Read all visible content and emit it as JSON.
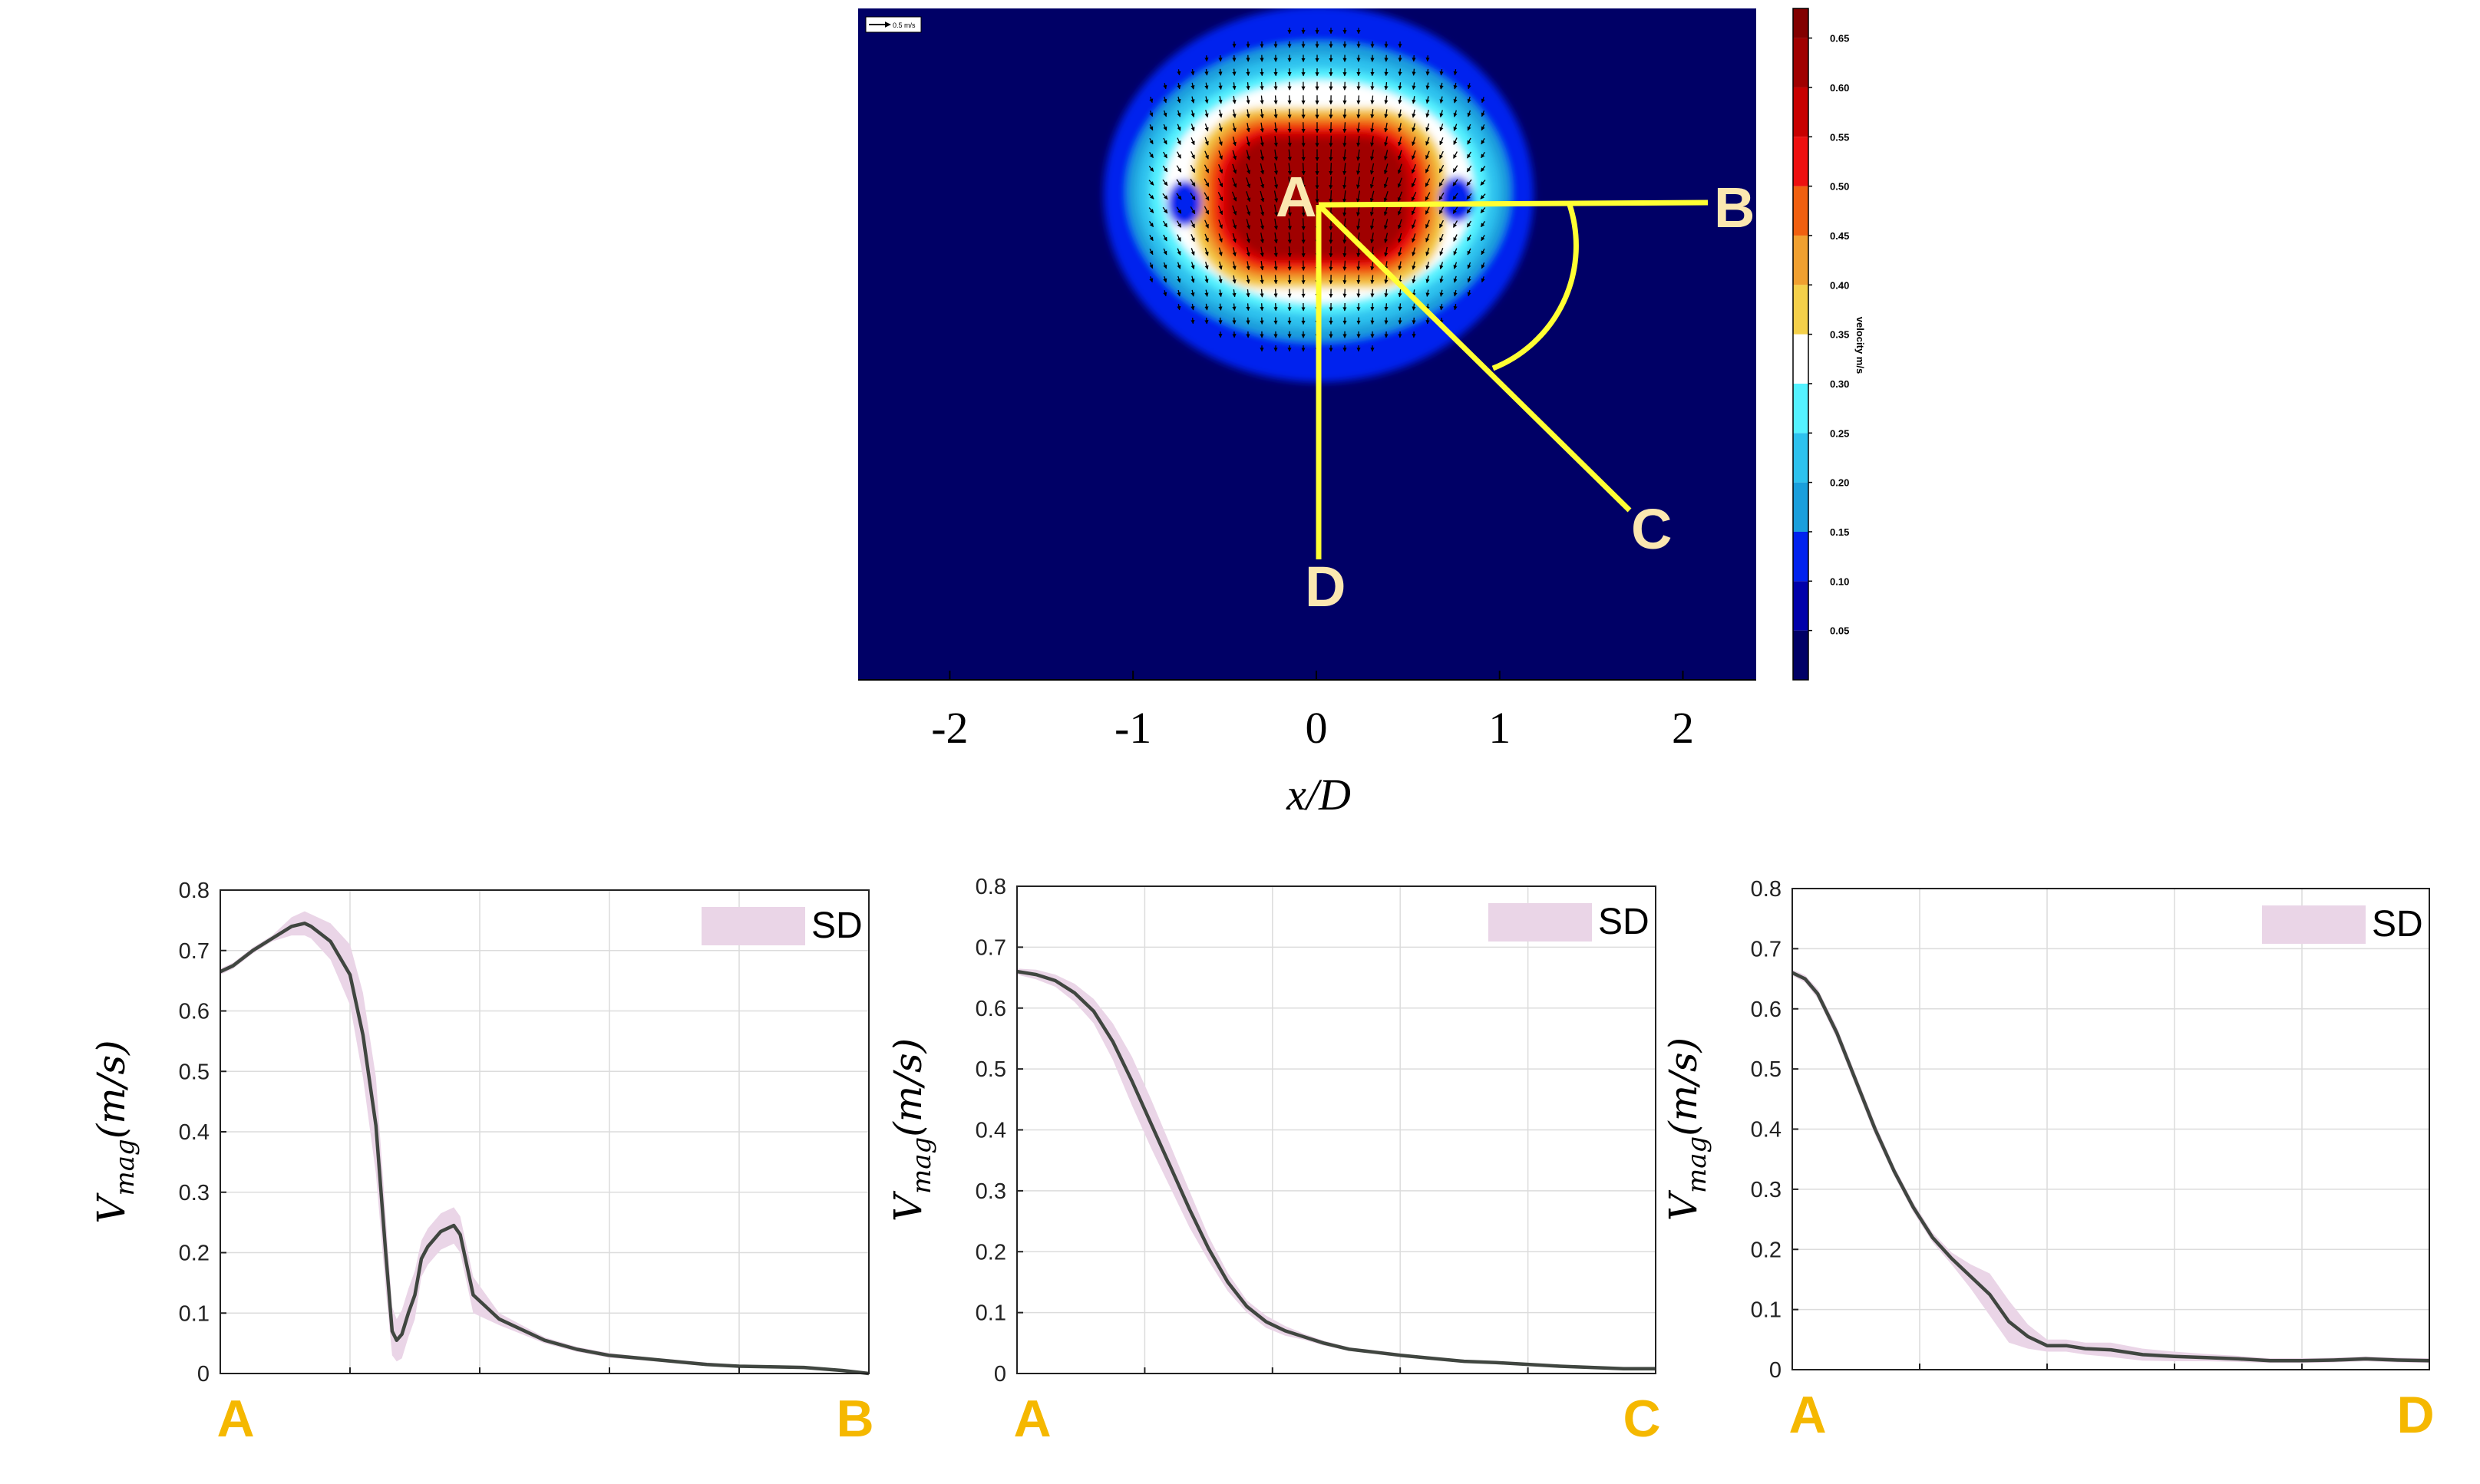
{
  "colors": {
    "line": "#404640",
    "sd_band": "#ead5e7",
    "grid": "#dcdcdc",
    "end_label": "#f5b800",
    "map_label": "#fbe7b0",
    "path_line": "#ffff33",
    "map_background": "#000066"
  },
  "contour_map": {
    "x_axis_label": "x/D",
    "x_ticks": [
      "-2",
      "-1",
      "0",
      "1",
      "2"
    ],
    "x_range": [
      -2.5,
      2.4
    ],
    "reference_arrow_label": "0.5 m/s",
    "points": [
      "A",
      "B",
      "C",
      "D"
    ],
    "colorbar": {
      "label": "velocity m/s",
      "levels": [
        0.05,
        0.1,
        0.15,
        0.2,
        0.25,
        0.3,
        0.35,
        0.4,
        0.45,
        0.5,
        0.55,
        0.6,
        0.65
      ],
      "tick_labels": [
        "0.05",
        "0.10",
        "0.15",
        "0.20",
        "0.25",
        "0.30",
        "0.35",
        "0.40",
        "0.45",
        "0.50",
        "0.55",
        "0.60",
        "0.65"
      ],
      "band_colors": [
        "#000066",
        "#0000aa",
        "#0022ee",
        "#1a9fdc",
        "#2ec2ee",
        "#55f2ff",
        "#ffffff",
        "#f4d04a",
        "#f0a030",
        "#f06010",
        "#ee1010",
        "#c80000",
        "#a00000",
        "#820000"
      ]
    }
  },
  "chart_data": [
    {
      "type": "line",
      "start_label": "A",
      "end_label": "B",
      "ylabel": "V_mag(m/s)",
      "ylabel_main": "V",
      "ylabel_sub": "mag",
      "ylabel_unit": "(m/s)",
      "ylim": [
        0,
        0.8
      ],
      "yticks": [
        "0",
        "0.1",
        "0.2",
        "0.3",
        "0.4",
        "0.5",
        "0.6",
        "0.7",
        "0.8"
      ],
      "xlim": [
        0,
        1
      ],
      "grid": true,
      "legend": {
        "label": "SD",
        "position": "top-right"
      },
      "x": [
        0,
        0.02,
        0.05,
        0.08,
        0.11,
        0.13,
        0.14,
        0.17,
        0.2,
        0.22,
        0.24,
        0.255,
        0.265,
        0.272,
        0.28,
        0.29,
        0.3,
        0.31,
        0.32,
        0.34,
        0.36,
        0.37,
        0.39,
        0.43,
        0.5,
        0.55,
        0.6,
        0.65,
        0.7,
        0.75,
        0.8,
        0.9,
        0.96,
        1
      ],
      "y": [
        0.665,
        0.675,
        0.7,
        0.72,
        0.74,
        0.745,
        0.74,
        0.715,
        0.66,
        0.56,
        0.41,
        0.2,
        0.07,
        0.055,
        0.065,
        0.1,
        0.13,
        0.19,
        0.21,
        0.235,
        0.245,
        0.23,
        0.13,
        0.09,
        0.055,
        0.04,
        0.03,
        0.025,
        0.02,
        0.015,
        0.012,
        0.01,
        0.005,
        0
      ],
      "sd": [
        0.005,
        0.005,
        0.005,
        0.005,
        0.015,
        0.02,
        0.02,
        0.03,
        0.05,
        0.07,
        0.08,
        0.06,
        0.04,
        0.035,
        0.04,
        0.04,
        0.04,
        0.03,
        0.03,
        0.03,
        0.03,
        0.03,
        0.03,
        0.01,
        0.005,
        0.004,
        0.004,
        0.003,
        0.003,
        0.003,
        0.002,
        0.002,
        0.002,
        0.002
      ]
    },
    {
      "type": "line",
      "start_label": "A",
      "end_label": "C",
      "ylabel": "V_mag(m/s)",
      "ylabel_main": "V",
      "ylabel_sub": "mag",
      "ylabel_unit": "(m/s)",
      "ylim": [
        0,
        0.8
      ],
      "yticks": [
        "0",
        "0.1",
        "0.2",
        "0.3",
        "0.4",
        "0.5",
        "0.6",
        "0.7",
        "0.8"
      ],
      "xlim": [
        0,
        1
      ],
      "grid": true,
      "legend": {
        "label": "SD",
        "position": "top-right"
      },
      "x": [
        0,
        0.03,
        0.06,
        0.09,
        0.12,
        0.15,
        0.18,
        0.21,
        0.24,
        0.27,
        0.3,
        0.33,
        0.36,
        0.39,
        0.42,
        0.45,
        0.48,
        0.52,
        0.56,
        0.6,
        0.65,
        0.7,
        0.75,
        0.8,
        0.85,
        0.9,
        0.95,
        1
      ],
      "y": [
        0.66,
        0.655,
        0.645,
        0.625,
        0.595,
        0.545,
        0.48,
        0.41,
        0.34,
        0.27,
        0.205,
        0.15,
        0.11,
        0.085,
        0.07,
        0.06,
        0.05,
        0.04,
        0.035,
        0.03,
        0.025,
        0.02,
        0.018,
        0.015,
        0.012,
        0.01,
        0.008,
        0.008
      ],
      "sd": [
        0.005,
        0.008,
        0.01,
        0.015,
        0.02,
        0.03,
        0.04,
        0.04,
        0.035,
        0.03,
        0.02,
        0.015,
        0.01,
        0.01,
        0.008,
        0.005,
        0.004,
        0.003,
        0.003,
        0.003,
        0.002,
        0.002,
        0.002,
        0.002,
        0.002,
        0.002,
        0.002,
        0.002
      ]
    },
    {
      "type": "line",
      "start_label": "A",
      "end_label": "D",
      "ylabel": "V_mag(m/s)",
      "ylabel_main": "V",
      "ylabel_sub": "mag",
      "ylabel_unit": "(m/s)",
      "ylim": [
        0,
        0.8
      ],
      "yticks": [
        "0",
        "0.1",
        "0.2",
        "0.3",
        "0.4",
        "0.5",
        "0.6",
        "0.7",
        "0.8"
      ],
      "xlim": [
        0,
        1
      ],
      "grid": true,
      "legend": {
        "label": "SD",
        "position": "top-right"
      },
      "x": [
        0,
        0.02,
        0.04,
        0.07,
        0.1,
        0.13,
        0.16,
        0.19,
        0.22,
        0.25,
        0.28,
        0.31,
        0.34,
        0.37,
        0.4,
        0.43,
        0.46,
        0.5,
        0.55,
        0.6,
        0.65,
        0.7,
        0.75,
        0.8,
        0.85,
        0.9,
        0.95,
        1
      ],
      "y": [
        0.66,
        0.65,
        0.625,
        0.56,
        0.48,
        0.4,
        0.33,
        0.27,
        0.22,
        0.185,
        0.155,
        0.125,
        0.08,
        0.055,
        0.04,
        0.04,
        0.035,
        0.033,
        0.025,
        0.022,
        0.02,
        0.018,
        0.015,
        0.015,
        0.016,
        0.018,
        0.016,
        0.015
      ],
      "sd": [
        0.005,
        0.006,
        0.008,
        0.01,
        0.01,
        0.01,
        0.008,
        0.008,
        0.008,
        0.01,
        0.02,
        0.035,
        0.035,
        0.02,
        0.01,
        0.01,
        0.01,
        0.012,
        0.01,
        0.008,
        0.006,
        0.005,
        0.004,
        0.004,
        0.004,
        0.004,
        0.004,
        0.004
      ]
    }
  ]
}
